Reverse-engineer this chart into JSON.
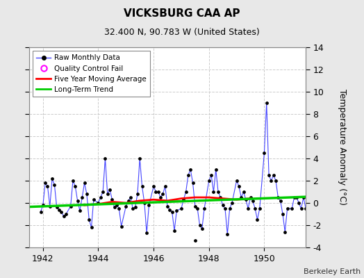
{
  "title": "VICKSBURG CAA AP",
  "subtitle": "32.400 N, 90.783 W (United States)",
  "credit": "Berkeley Earth",
  "ylabel_right": "Temperature Anomaly (°C)",
  "xlim": [
    1941.5,
    1951.5
  ],
  "ylim": [
    -4,
    14
  ],
  "yticks": [
    -4,
    -2,
    0,
    2,
    4,
    6,
    8,
    10,
    12,
    14
  ],
  "xticks": [
    1942,
    1944,
    1946,
    1948,
    1950
  ],
  "bg_color": "#e8e8e8",
  "plot_bg_color": "#ffffff",
  "grid_color": "#cccccc",
  "raw_color": "#4444ff",
  "raw_marker_color": "#000000",
  "moving_avg_color": "#ff0000",
  "trend_color": "#00cc00",
  "raw_data_x": [
    1941.917,
    1942.0,
    1942.083,
    1942.167,
    1942.25,
    1942.333,
    1942.417,
    1942.5,
    1942.583,
    1942.667,
    1942.75,
    1942.833,
    1943.0,
    1943.083,
    1943.167,
    1943.25,
    1943.333,
    1943.417,
    1943.5,
    1943.583,
    1943.667,
    1943.75,
    1943.833,
    1944.0,
    1944.083,
    1944.167,
    1944.25,
    1944.333,
    1944.417,
    1944.5,
    1944.583,
    1944.667,
    1944.75,
    1944.833,
    1945.0,
    1945.083,
    1945.167,
    1945.25,
    1945.333,
    1945.417,
    1945.5,
    1945.583,
    1945.667,
    1945.75,
    1945.833,
    1946.0,
    1946.083,
    1946.167,
    1946.25,
    1946.333,
    1946.417,
    1946.5,
    1946.583,
    1946.667,
    1946.75,
    1946.833,
    1947.0,
    1947.083,
    1947.167,
    1947.25,
    1947.333,
    1947.417,
    1947.5,
    1947.583,
    1947.667,
    1947.75,
    1947.833,
    1948.0,
    1948.083,
    1948.167,
    1948.25,
    1948.333,
    1948.417,
    1948.5,
    1948.583,
    1948.667,
    1948.75,
    1948.833,
    1949.0,
    1949.083,
    1949.167,
    1949.25,
    1949.333,
    1949.417,
    1949.5,
    1949.583,
    1949.667,
    1949.75,
    1949.833,
    1950.0,
    1950.083,
    1950.167,
    1950.25,
    1950.333,
    1950.417,
    1950.5,
    1950.583,
    1950.667,
    1950.75,
    1950.833,
    1951.0,
    1951.083,
    1951.167,
    1951.25,
    1951.333,
    1951.417,
    1951.5
  ],
  "raw_data_y": [
    -0.8,
    -0.2,
    1.8,
    1.5,
    -0.3,
    2.2,
    1.6,
    -0.4,
    -0.6,
    -0.8,
    -1.2,
    -1.0,
    -0.3,
    2.0,
    1.5,
    0.2,
    -0.7,
    0.5,
    1.8,
    0.8,
    -1.5,
    -2.2,
    0.3,
    0.0,
    0.5,
    1.0,
    4.0,
    0.8,
    1.2,
    0.3,
    -0.4,
    -0.2,
    -0.5,
    -2.1,
    -0.3,
    0.2,
    0.5,
    -0.5,
    -0.4,
    0.8,
    4.0,
    1.5,
    0.0,
    -2.7,
    -0.2,
    1.5,
    1.0,
    1.0,
    0.5,
    0.8,
    1.5,
    -0.3,
    -0.6,
    -0.8,
    -2.5,
    -0.7,
    -0.5,
    0.3,
    1.0,
    2.5,
    3.0,
    1.8,
    -0.3,
    -0.5,
    -2.0,
    -2.3,
    -0.5,
    2.0,
    2.5,
    1.0,
    3.0,
    1.0,
    0.5,
    -0.2,
    -0.5,
    -2.8,
    -0.5,
    0.0,
    2.0,
    1.5,
    0.5,
    1.0,
    0.3,
    -0.5,
    0.5,
    0.2,
    -0.5,
    -1.5,
    -0.5,
    4.5,
    9.0,
    2.5,
    2.0,
    2.5,
    2.0,
    0.5,
    0.2,
    -1.0,
    -2.6,
    -0.5,
    -0.5,
    0.5,
    0.5,
    0.0,
    -0.5,
    0.5,
    -0.5
  ],
  "isolated_point_x": [
    1947.5
  ],
  "isolated_point_y": [
    -3.4
  ],
  "moving_avg_x": [
    1943.5,
    1944.0,
    1944.5,
    1945.0,
    1945.5,
    1946.0,
    1946.5,
    1947.0,
    1947.5,
    1948.0,
    1948.5,
    1949.0,
    1949.5
  ],
  "moving_avg_y": [
    -0.2,
    -0.1,
    0.1,
    0.0,
    0.2,
    0.3,
    0.2,
    0.4,
    0.5,
    0.5,
    0.4,
    0.3,
    0.4
  ],
  "trend_x": [
    1941.5,
    1951.5
  ],
  "trend_y": [
    -0.35,
    0.55
  ]
}
